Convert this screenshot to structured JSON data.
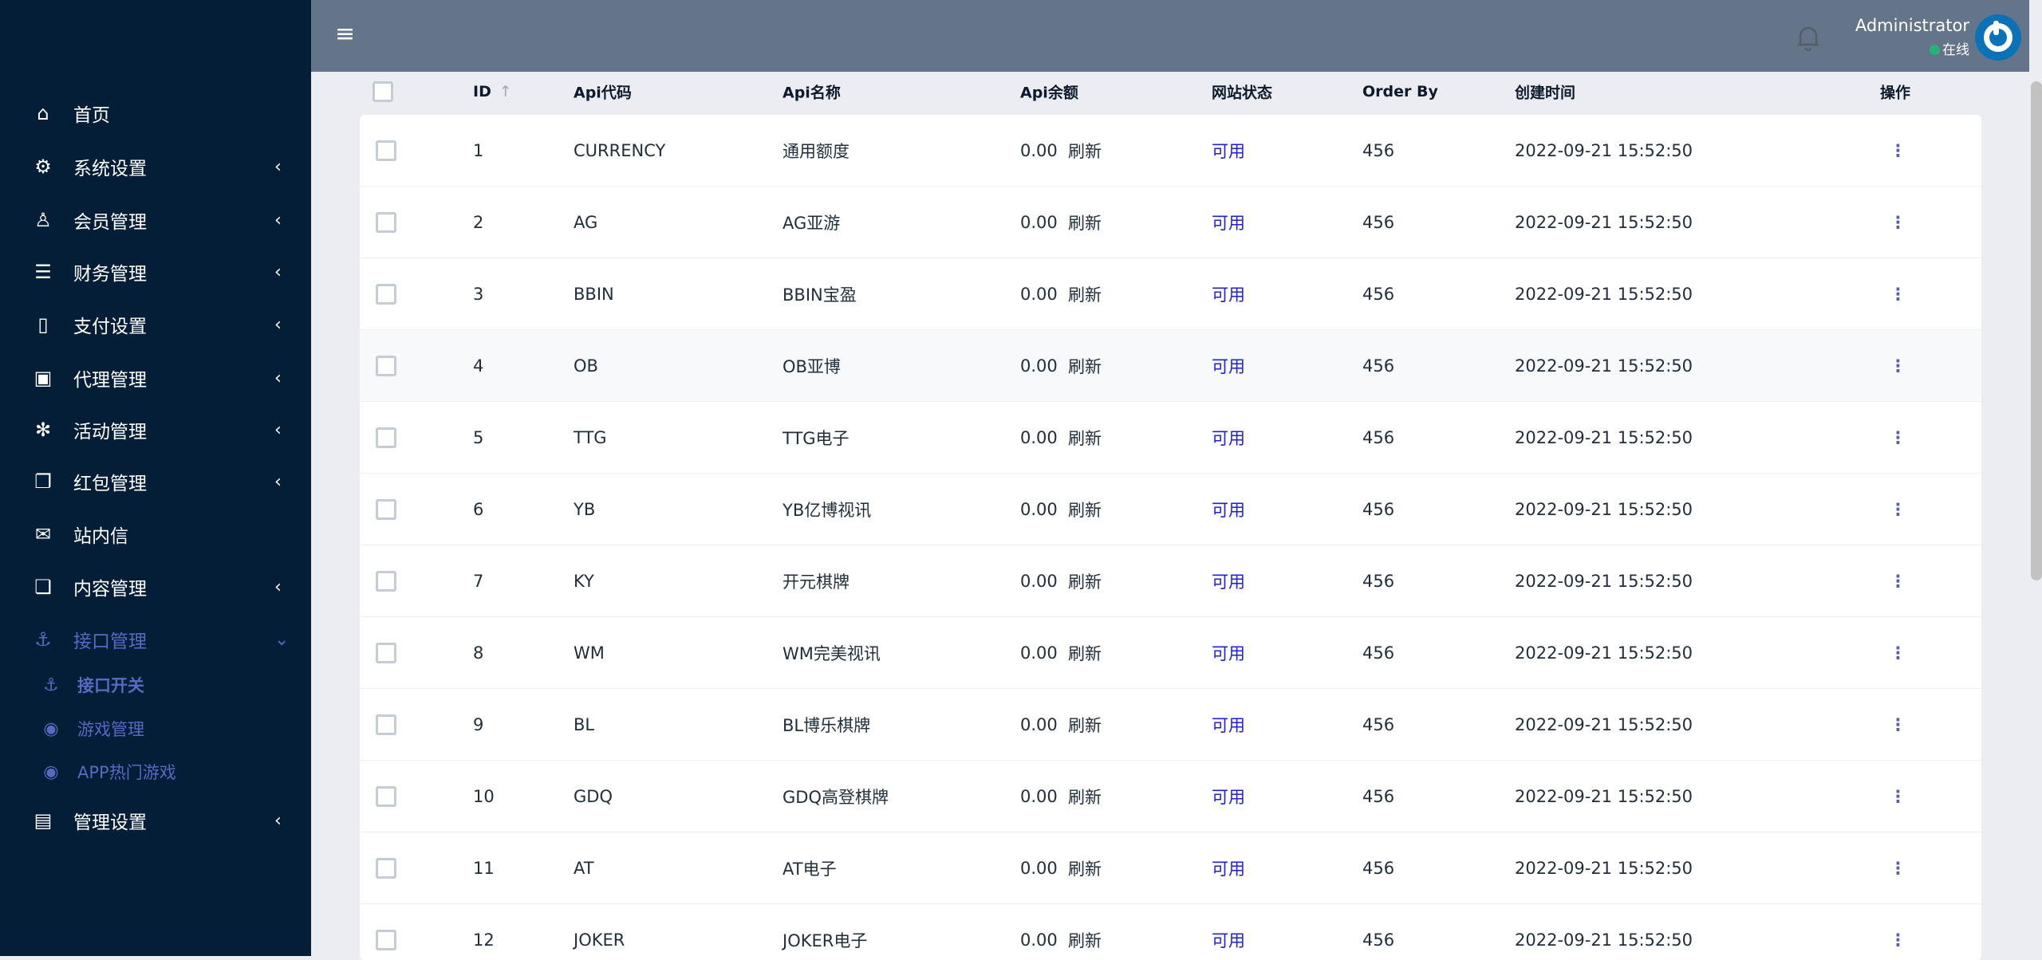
{
  "sidebar": {
    "items": [
      {
        "label": "首页",
        "icon": "home-icon",
        "chev": ""
      },
      {
        "label": "系统设置",
        "icon": "gears-icon",
        "chev": "‹"
      },
      {
        "label": "会员管理",
        "icon": "user-icon",
        "chev": "‹"
      },
      {
        "label": "财务管理",
        "icon": "database-icon",
        "chev": "‹"
      },
      {
        "label": "支付设置",
        "icon": "bookmark-icon",
        "chev": "‹"
      },
      {
        "label": "代理管理",
        "icon": "contact-icon",
        "chev": "‹"
      },
      {
        "label": "活动管理",
        "icon": "yelp-icon",
        "chev": "‹"
      },
      {
        "label": "红包管理",
        "icon": "clone-icon",
        "chev": "‹"
      },
      {
        "label": "站内信",
        "icon": "envelope-icon",
        "chev": ""
      },
      {
        "label": "内容管理",
        "icon": "copy-icon",
        "chev": "‹"
      },
      {
        "label": "接口管理",
        "icon": "anchor-icon",
        "chev": "⌄"
      },
      {
        "label": "接口开关",
        "icon": "anchor-icon"
      },
      {
        "label": "游戏管理",
        "icon": "gamepad-icon"
      },
      {
        "label": "APP热门游戏",
        "icon": "gamepad-icon"
      },
      {
        "label": "管理设置",
        "icon": "id-card-icon",
        "chev": "‹"
      }
    ]
  },
  "header": {
    "user": "Administrator",
    "status": "在线",
    "menu_icon": "≡"
  },
  "table": {
    "headers": {
      "id": "ID",
      "code": "Api代码",
      "name": "Api名称",
      "balance": "Api余额",
      "status": "网站状态",
      "order": "Order By",
      "time": "创建时间",
      "action": "操作"
    },
    "sort_icon": "↑",
    "refresh_label": "刷新",
    "rows": [
      {
        "id": "1",
        "code": "CURRENCY",
        "name": "通用额度",
        "balance": "0.00",
        "status": "可用",
        "order": "456",
        "time": "2022-09-21 15:52:50"
      },
      {
        "id": "2",
        "code": "AG",
        "name": "AG亚游",
        "balance": "0.00",
        "status": "可用",
        "order": "456",
        "time": "2022-09-21 15:52:50"
      },
      {
        "id": "3",
        "code": "BBIN",
        "name": "BBIN宝盈",
        "balance": "0.00",
        "status": "可用",
        "order": "456",
        "time": "2022-09-21 15:52:50"
      },
      {
        "id": "4",
        "code": "OB",
        "name": "OB亚博",
        "balance": "0.00",
        "status": "可用",
        "order": "456",
        "time": "2022-09-21 15:52:50"
      },
      {
        "id": "5",
        "code": "TTG",
        "name": "TTG电子",
        "balance": "0.00",
        "status": "可用",
        "order": "456",
        "time": "2022-09-21 15:52:50"
      },
      {
        "id": "6",
        "code": "YB",
        "name": "YB亿博视讯",
        "balance": "0.00",
        "status": "可用",
        "order": "456",
        "time": "2022-09-21 15:52:50"
      },
      {
        "id": "7",
        "code": "KY",
        "name": "开元棋牌",
        "balance": "0.00",
        "status": "可用",
        "order": "456",
        "time": "2022-09-21 15:52:50"
      },
      {
        "id": "8",
        "code": "WM",
        "name": "WM完美视讯",
        "balance": "0.00",
        "status": "可用",
        "order": "456",
        "time": "2022-09-21 15:52:50"
      },
      {
        "id": "9",
        "code": "BL",
        "name": "BL博乐棋牌",
        "balance": "0.00",
        "status": "可用",
        "order": "456",
        "time": "2022-09-21 15:52:50"
      },
      {
        "id": "10",
        "code": "GDQ",
        "name": "GDQ高登棋牌",
        "balance": "0.00",
        "status": "可用",
        "order": "456",
        "time": "2022-09-21 15:52:50"
      },
      {
        "id": "11",
        "code": "AT",
        "name": "AT电子",
        "balance": "0.00",
        "status": "可用",
        "order": "456",
        "time": "2022-09-21 15:52:50"
      },
      {
        "id": "12",
        "code": "JOKER",
        "name": "JOKER电子",
        "balance": "0.00",
        "status": "可用",
        "order": "456",
        "time": "2022-09-21 15:52:50"
      }
    ]
  },
  "colors": {
    "sidebar": "#051e38",
    "header": "#647589",
    "active": "#5a68c0",
    "status_ok": "#1e21d8"
  }
}
